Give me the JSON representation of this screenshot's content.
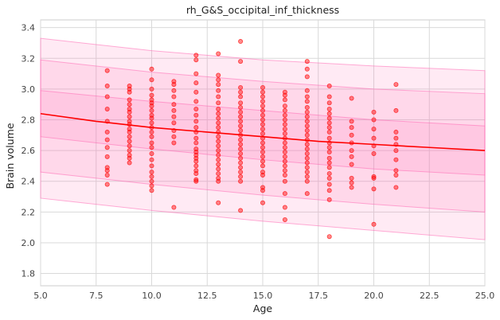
{
  "chart_data": {
    "type": "scatter",
    "title": "rh_G&S_occipital_inf_thickness",
    "xlabel": "Age",
    "ylabel": "Brain volume",
    "xlim": [
      5.0,
      25.0
    ],
    "ylim": [
      1.72,
      3.45
    ],
    "xticks": [
      "5.0",
      "7.5",
      "10.0",
      "12.5",
      "15.0",
      "17.5",
      "20.0",
      "22.5",
      "25.0"
    ],
    "xtick_values": [
      5.0,
      7.5,
      10.0,
      12.5,
      15.0,
      17.5,
      20.0,
      22.5,
      25.0
    ],
    "yticks": [
      "1.8",
      "2.0",
      "2.2",
      "2.4",
      "2.6",
      "2.8",
      "3.0",
      "3.2",
      "3.4"
    ],
    "ytick_values": [
      1.8,
      2.0,
      2.2,
      2.4,
      2.6,
      2.8,
      3.0,
      3.2,
      3.4
    ],
    "grid": true,
    "colors": {
      "points": "#ff0000",
      "median_line": "#ff0000",
      "band": "#ff69b4"
    },
    "median": {
      "x": [
        5,
        7.5,
        10,
        12.5,
        15,
        17.5,
        20,
        22.5,
        25
      ],
      "y": [
        2.84,
        2.79,
        2.75,
        2.72,
        2.69,
        2.66,
        2.64,
        2.62,
        2.6
      ]
    },
    "bands": [
      {
        "lower": {
          "x": [
            5,
            10,
            15,
            20,
            25
          ],
          "y": [
            2.29,
            2.21,
            2.14,
            2.08,
            2.02
          ]
        },
        "upper": {
          "x": [
            5,
            10,
            15,
            20,
            25
          ],
          "y": [
            3.33,
            3.25,
            3.19,
            3.15,
            3.12
          ]
        }
      },
      {
        "lower": {
          "x": [
            5,
            10,
            15,
            20,
            25
          ],
          "y": [
            2.46,
            2.38,
            2.31,
            2.25,
            2.2
          ]
        },
        "upper": {
          "x": [
            5,
            10,
            15,
            20,
            25
          ],
          "y": [
            3.19,
            3.11,
            3.05,
            3.0,
            2.97
          ]
        }
      },
      {
        "lower": {
          "x": [
            5,
            10,
            15,
            20,
            25
          ],
          "y": [
            2.69,
            2.61,
            2.54,
            2.48,
            2.44
          ]
        },
        "upper": {
          "x": [
            5,
            10,
            15,
            20,
            25
          ],
          "y": [
            2.99,
            2.92,
            2.86,
            2.8,
            2.76
          ]
        }
      }
    ],
    "points": [
      [
        8,
        3.12
      ],
      [
        8,
        3.02
      ],
      [
        8,
        2.95
      ],
      [
        8,
        2.87
      ],
      [
        8,
        2.79
      ],
      [
        8,
        2.72
      ],
      [
        8,
        2.67
      ],
      [
        8,
        2.62
      ],
      [
        8,
        2.56
      ],
      [
        8,
        2.49
      ],
      [
        8,
        2.47
      ],
      [
        8,
        2.44
      ],
      [
        8,
        2.38
      ],
      [
        9,
        3.02
      ],
      [
        9,
        3.0
      ],
      [
        9,
        2.98
      ],
      [
        9,
        2.93
      ],
      [
        9,
        2.9
      ],
      [
        9,
        2.87
      ],
      [
        9,
        2.85
      ],
      [
        9,
        2.82
      ],
      [
        9,
        2.79
      ],
      [
        9,
        2.77
      ],
      [
        9,
        2.74
      ],
      [
        9,
        2.72
      ],
      [
        9,
        2.69
      ],
      [
        9,
        2.66
      ],
      [
        9,
        2.63
      ],
      [
        9,
        2.6
      ],
      [
        9,
        2.57
      ],
      [
        9,
        2.55
      ],
      [
        9,
        2.52
      ],
      [
        10,
        3.13
      ],
      [
        10,
        3.06
      ],
      [
        10,
        3.0
      ],
      [
        10,
        2.96
      ],
      [
        10,
        2.93
      ],
      [
        10,
        2.91
      ],
      [
        10,
        2.89
      ],
      [
        10,
        2.86
      ],
      [
        10,
        2.83
      ],
      [
        10,
        2.81
      ],
      [
        10,
        2.78
      ],
      [
        10,
        2.75
      ],
      [
        10,
        2.72
      ],
      [
        10,
        2.69
      ],
      [
        10,
        2.65
      ],
      [
        10,
        2.62
      ],
      [
        10,
        2.58
      ],
      [
        10,
        2.54
      ],
      [
        10,
        2.5
      ],
      [
        10,
        2.46
      ],
      [
        10,
        2.43
      ],
      [
        10,
        2.4
      ],
      [
        10,
        2.37
      ],
      [
        10,
        2.34
      ],
      [
        11,
        3.05
      ],
      [
        11,
        3.03
      ],
      [
        11,
        2.99
      ],
      [
        11,
        2.95
      ],
      [
        11,
        2.9
      ],
      [
        11,
        2.86
      ],
      [
        11,
        2.82
      ],
      [
        11,
        2.78
      ],
      [
        11,
        2.73
      ],
      [
        11,
        2.69
      ],
      [
        11,
        2.65
      ],
      [
        11,
        2.23
      ],
      [
        12,
        3.22
      ],
      [
        12,
        3.19
      ],
      [
        12,
        3.1
      ],
      [
        12,
        3.04
      ],
      [
        12,
        2.98
      ],
      [
        12,
        2.92
      ],
      [
        12,
        2.87
      ],
      [
        12,
        2.83
      ],
      [
        12,
        2.79
      ],
      [
        12,
        2.75
      ],
      [
        12,
        2.72
      ],
      [
        12,
        2.68
      ],
      [
        12,
        2.65
      ],
      [
        12,
        2.61
      ],
      [
        12,
        2.59
      ],
      [
        12,
        2.57
      ],
      [
        12,
        2.55
      ],
      [
        12,
        2.53
      ],
      [
        12,
        2.5
      ],
      [
        12,
        2.47
      ],
      [
        12,
        2.45
      ],
      [
        12,
        2.41
      ],
      [
        12,
        2.4
      ],
      [
        13,
        3.23
      ],
      [
        13,
        3.09
      ],
      [
        13,
        3.06
      ],
      [
        13,
        3.03
      ],
      [
        13,
        2.99
      ],
      [
        13,
        2.95
      ],
      [
        13,
        2.91
      ],
      [
        13,
        2.87
      ],
      [
        13,
        2.84
      ],
      [
        13,
        2.81
      ],
      [
        13,
        2.78
      ],
      [
        13,
        2.75
      ],
      [
        13,
        2.72
      ],
      [
        13,
        2.69
      ],
      [
        13,
        2.66
      ],
      [
        13,
        2.63
      ],
      [
        13,
        2.6
      ],
      [
        13,
        2.57
      ],
      [
        13,
        2.54
      ],
      [
        13,
        2.51
      ],
      [
        13,
        2.48
      ],
      [
        13,
        2.45
      ],
      [
        13,
        2.42
      ],
      [
        13,
        2.4
      ],
      [
        13,
        2.26
      ],
      [
        14,
        3.31
      ],
      [
        14,
        3.18
      ],
      [
        14,
        3.01
      ],
      [
        14,
        2.98
      ],
      [
        14,
        2.95
      ],
      [
        14,
        2.91
      ],
      [
        14,
        2.88
      ],
      [
        14,
        2.85
      ],
      [
        14,
        2.82
      ],
      [
        14,
        2.79
      ],
      [
        14,
        2.76
      ],
      [
        14,
        2.73
      ],
      [
        14,
        2.7
      ],
      [
        14,
        2.67
      ],
      [
        14,
        2.64
      ],
      [
        14,
        2.61
      ],
      [
        14,
        2.58
      ],
      [
        14,
        2.55
      ],
      [
        14,
        2.52
      ],
      [
        14,
        2.49
      ],
      [
        14,
        2.46
      ],
      [
        14,
        2.43
      ],
      [
        14,
        2.4
      ],
      [
        14,
        2.21
      ],
      [
        15,
        3.01
      ],
      [
        15,
        2.98
      ],
      [
        15,
        2.95
      ],
      [
        15,
        2.92
      ],
      [
        15,
        2.89
      ],
      [
        15,
        2.86
      ],
      [
        15,
        2.83
      ],
      [
        15,
        2.8
      ],
      [
        15,
        2.77
      ],
      [
        15,
        2.74
      ],
      [
        15,
        2.71
      ],
      [
        15,
        2.68
      ],
      [
        15,
        2.65
      ],
      [
        15,
        2.62
      ],
      [
        15,
        2.59
      ],
      [
        15,
        2.56
      ],
      [
        15,
        2.53
      ],
      [
        15,
        2.5
      ],
      [
        15,
        2.46
      ],
      [
        15,
        2.44
      ],
      [
        15,
        2.36
      ],
      [
        15,
        2.34
      ],
      [
        15,
        2.26
      ],
      [
        16,
        2.98
      ],
      [
        16,
        2.96
      ],
      [
        16,
        2.93
      ],
      [
        16,
        2.89
      ],
      [
        16,
        2.86
      ],
      [
        16,
        2.83
      ],
      [
        16,
        2.8
      ],
      [
        16,
        2.77
      ],
      [
        16,
        2.74
      ],
      [
        16,
        2.71
      ],
      [
        16,
        2.68
      ],
      [
        16,
        2.65
      ],
      [
        16,
        2.62
      ],
      [
        16,
        2.59
      ],
      [
        16,
        2.56
      ],
      [
        16,
        2.53
      ],
      [
        16,
        2.5
      ],
      [
        16,
        2.47
      ],
      [
        16,
        2.44
      ],
      [
        16,
        2.4
      ],
      [
        16,
        2.32
      ],
      [
        16,
        2.23
      ],
      [
        16,
        2.15
      ],
      [
        17,
        3.18
      ],
      [
        17,
        3.13
      ],
      [
        17,
        3.08
      ],
      [
        17,
        2.99
      ],
      [
        17,
        2.95
      ],
      [
        17,
        2.92
      ],
      [
        17,
        2.88
      ],
      [
        17,
        2.85
      ],
      [
        17,
        2.82
      ],
      [
        17,
        2.79
      ],
      [
        17,
        2.76
      ],
      [
        17,
        2.73
      ],
      [
        17,
        2.7
      ],
      [
        17,
        2.67
      ],
      [
        17,
        2.64
      ],
      [
        17,
        2.61
      ],
      [
        17,
        2.58
      ],
      [
        17,
        2.55
      ],
      [
        17,
        2.52
      ],
      [
        17,
        2.49
      ],
      [
        17,
        2.46
      ],
      [
        17,
        2.43
      ],
      [
        17,
        2.4
      ],
      [
        17,
        2.32
      ],
      [
        18,
        3.02
      ],
      [
        18,
        2.95
      ],
      [
        18,
        2.91
      ],
      [
        18,
        2.87
      ],
      [
        18,
        2.84
      ],
      [
        18,
        2.81
      ],
      [
        18,
        2.78
      ],
      [
        18,
        2.75
      ],
      [
        18,
        2.72
      ],
      [
        18,
        2.68
      ],
      [
        18,
        2.65
      ],
      [
        18,
        2.62
      ],
      [
        18,
        2.59
      ],
      [
        18,
        2.55
      ],
      [
        18,
        2.52
      ],
      [
        18,
        2.49
      ],
      [
        18,
        2.45
      ],
      [
        18,
        2.42
      ],
      [
        18,
        2.38
      ],
      [
        18,
        2.34
      ],
      [
        18,
        2.28
      ],
      [
        18,
        2.04
      ],
      [
        19,
        2.94
      ],
      [
        19,
        2.79
      ],
      [
        19,
        2.75
      ],
      [
        19,
        2.7
      ],
      [
        19,
        2.65
      ],
      [
        19,
        2.6
      ],
      [
        19,
        2.56
      ],
      [
        19,
        2.51
      ],
      [
        19,
        2.42
      ],
      [
        19,
        2.39
      ],
      [
        19,
        2.36
      ],
      [
        20,
        2.85
      ],
      [
        20,
        2.8
      ],
      [
        20,
        2.74
      ],
      [
        20,
        2.68
      ],
      [
        20,
        2.63
      ],
      [
        20,
        2.58
      ],
      [
        20,
        2.43
      ],
      [
        20,
        2.42
      ],
      [
        20,
        2.35
      ],
      [
        20,
        2.12
      ],
      [
        21,
        3.03
      ],
      [
        21,
        2.86
      ],
      [
        21,
        2.72
      ],
      [
        21,
        2.68
      ],
      [
        21,
        2.64
      ],
      [
        21,
        2.6
      ],
      [
        21,
        2.54
      ],
      [
        21,
        2.47
      ],
      [
        21,
        2.44
      ],
      [
        21,
        2.36
      ]
    ]
  }
}
